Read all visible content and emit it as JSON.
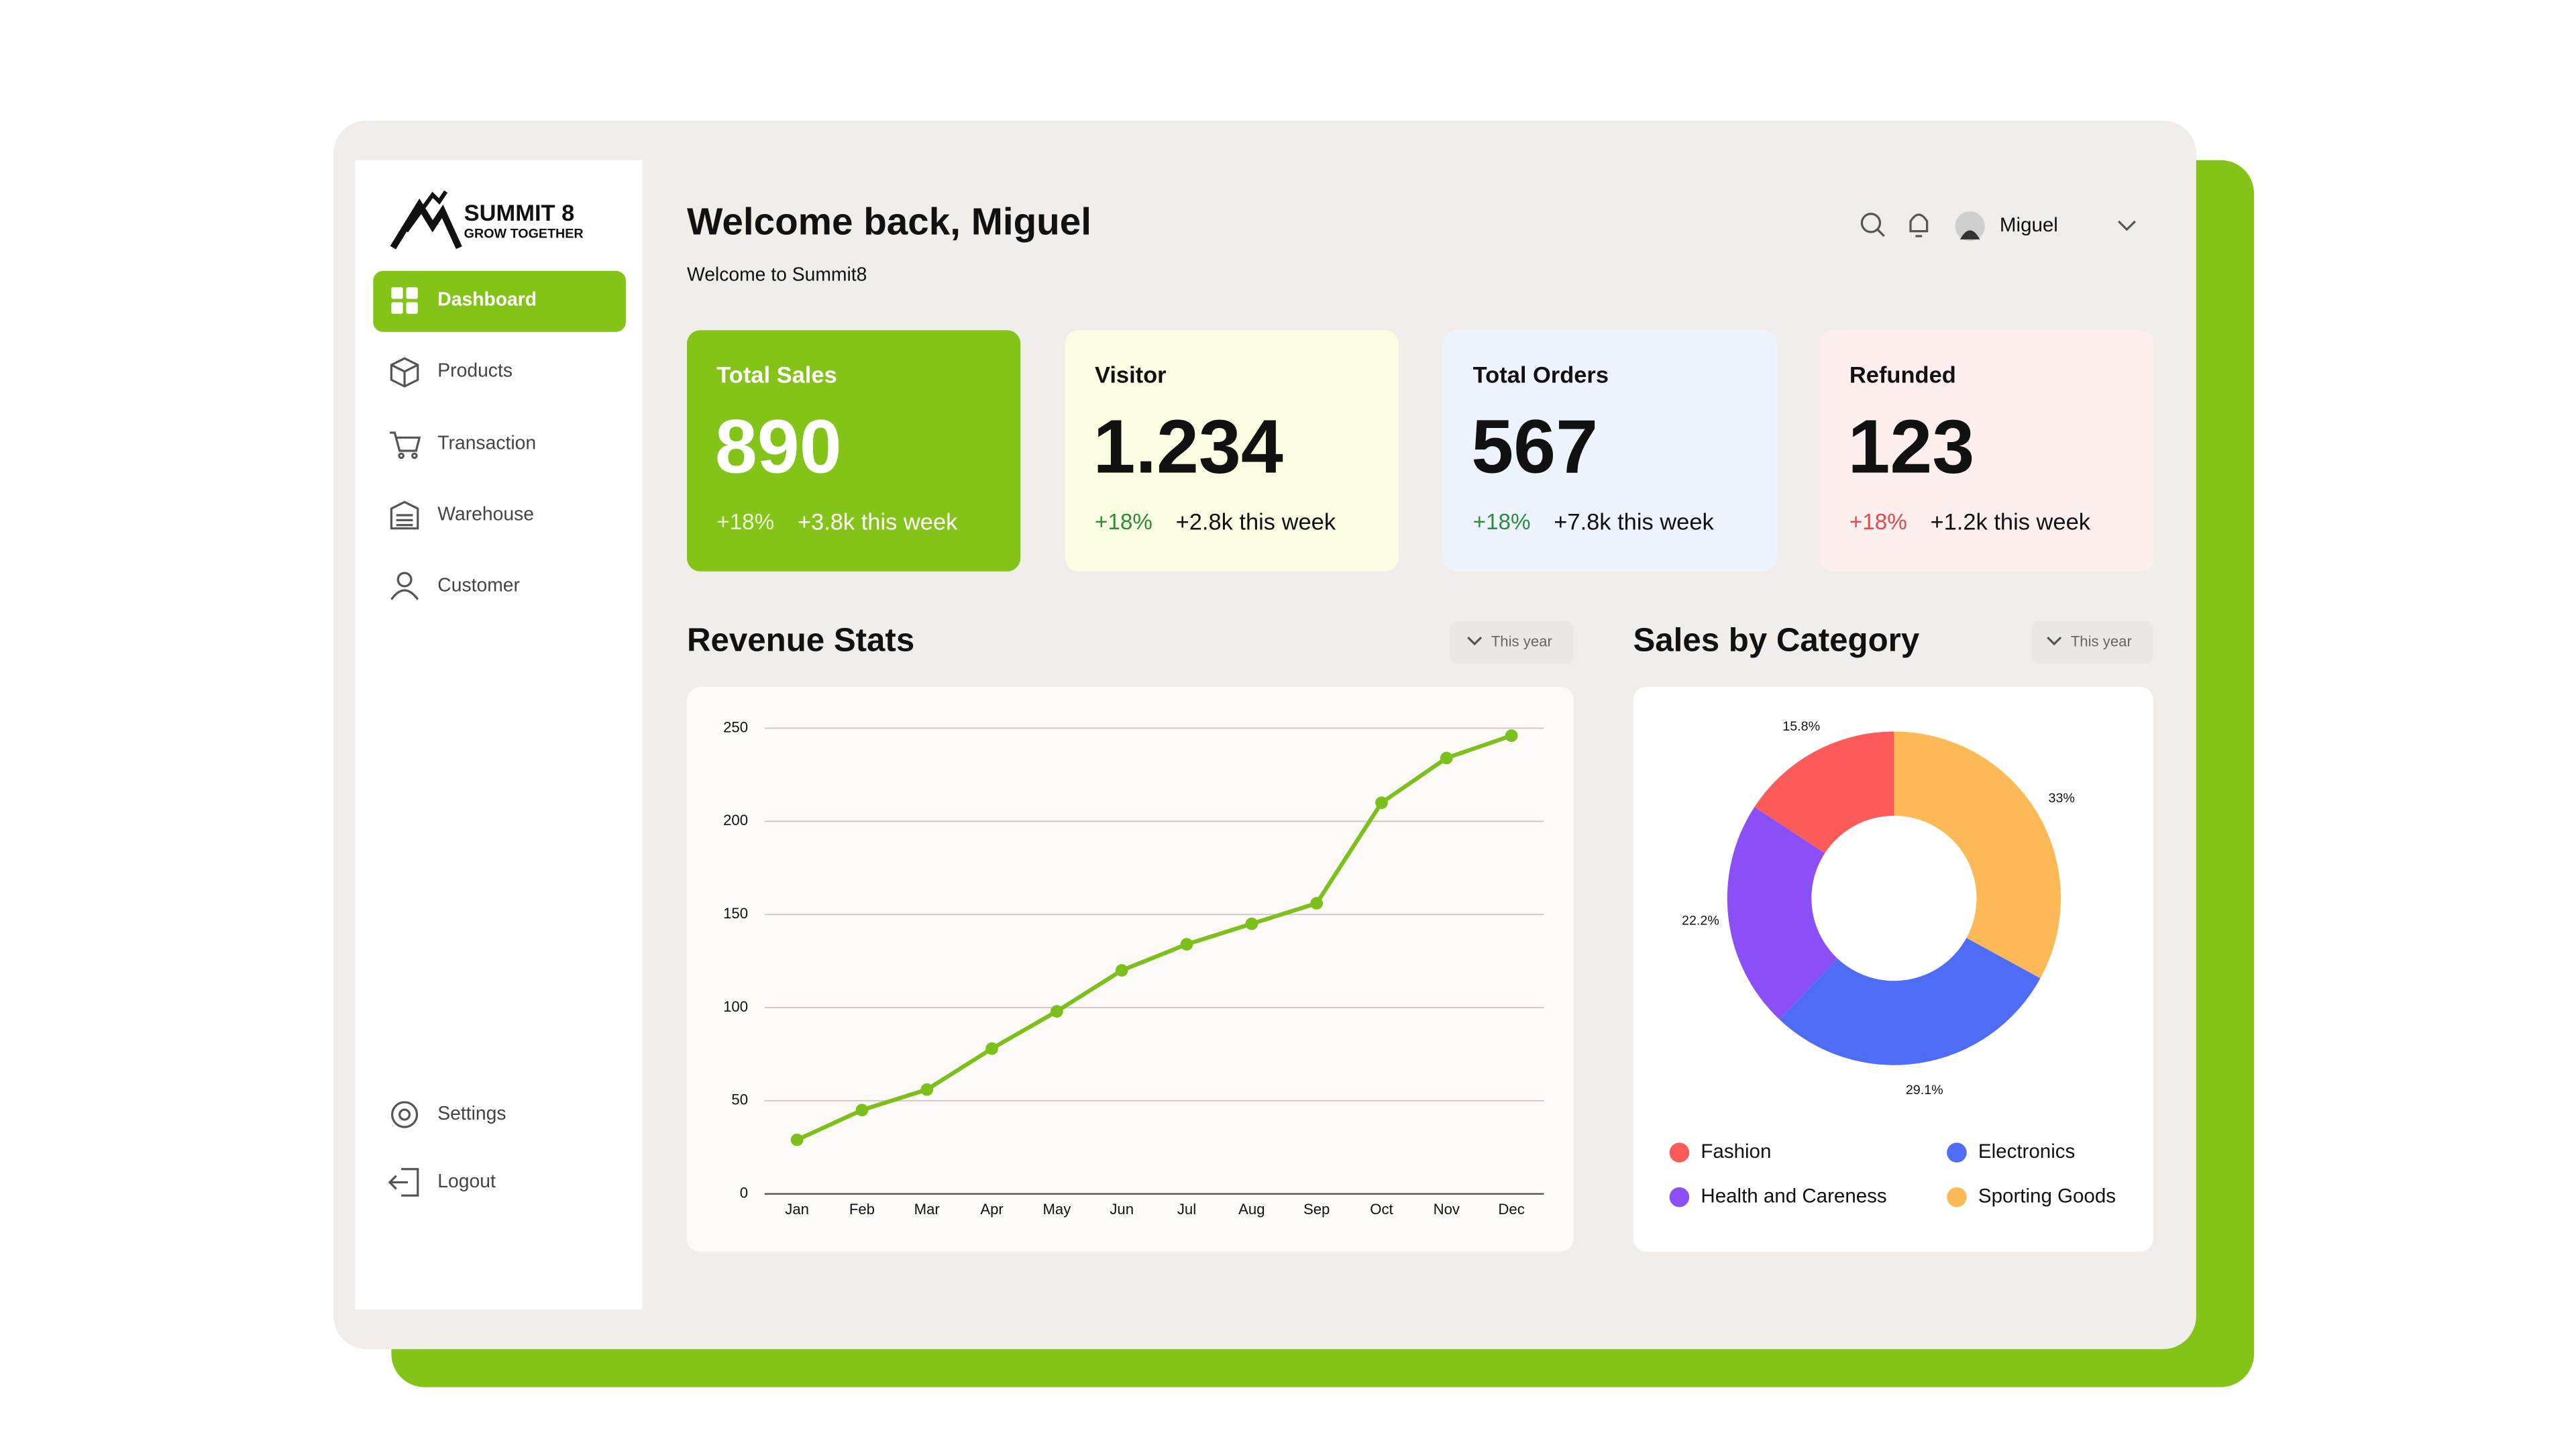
{
  "sidebar": {
    "logo_title": "SUMMIT 8",
    "logo_tagline": "GROW TOGETHER",
    "menu": [
      "Dashboard",
      "Products",
      "Transaction",
      "Warehouse",
      "Customer"
    ],
    "footer_menu": [
      "Settings",
      "Logout"
    ]
  },
  "header": {
    "title": "Welcome back, Miguel",
    "subtitle": "Welcome to Summit8",
    "user": "Miguel"
  },
  "cards": [
    {
      "title": "Total Sales",
      "value": "890",
      "change": "+18%",
      "note": "+3.8k this week"
    },
    {
      "title": "Visitor",
      "value": "1.234",
      "change": "+18%",
      "note": "+2.8k this week"
    },
    {
      "title": "Total Orders",
      "value": "567",
      "change": "+18%",
      "note": "+7.8k this week"
    },
    {
      "title": "Refunded",
      "value": "123",
      "change": "+18%",
      "note": "+1.2k this week"
    }
  ],
  "chart_data": [
    {
      "type": "line",
      "title": "Revenue Stats",
      "filter": "This year",
      "categories": [
        "Jan",
        "Feb",
        "Mar",
        "Apr",
        "May",
        "Jun",
        "Jul",
        "Aug",
        "Sep",
        "Oct",
        "Nov",
        "Dec"
      ],
      "values": [
        29,
        45,
        56,
        78,
        98,
        120,
        134,
        145,
        156,
        210,
        234,
        246
      ],
      "color": "#7cc01c",
      "ylim": [
        0,
        250
      ],
      "yticks": [
        0,
        50,
        100,
        150,
        200,
        250
      ],
      "grid": true
    },
    {
      "type": "pie",
      "title": "Sales by Category",
      "filter": "This year",
      "categories": [
        "Sporting Goods",
        "Electronics",
        "Health and Careness",
        "Fashion"
      ],
      "values": [
        33,
        29.1,
        22.2,
        15.8
      ],
      "value_labels": [
        "33%",
        "29.1%",
        "22.2%",
        "15.8%"
      ],
      "colors": [
        "#fdb955",
        "#4f6cf7",
        "#8b4ff7",
        "#fd5a5a"
      ],
      "donut": true
    }
  ]
}
